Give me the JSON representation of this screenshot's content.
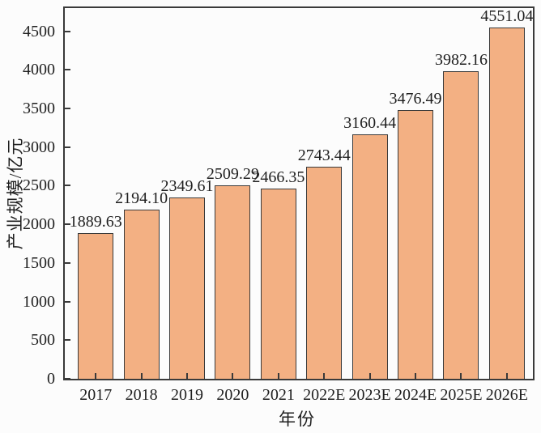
{
  "figure": {
    "background": "#fcfcfc"
  },
  "chart_data": {
    "type": "bar",
    "title": "",
    "xlabel": "年份",
    "ylabel": "产业规模/亿元",
    "categories": [
      "2017",
      "2018",
      "2019",
      "2020",
      "2021",
      "2022E",
      "2023E",
      "2024E",
      "2025E",
      "2026E"
    ],
    "values": [
      1889.63,
      2194.1,
      2349.61,
      2509.29,
      2466.35,
      2743.44,
      3160.44,
      3476.49,
      3982.16,
      4551.04
    ],
    "value_labels": [
      "1889.63",
      "2194.10",
      "2349.61",
      "2509.29",
      "2466.35",
      "2743.44",
      "3160.44",
      "3476.49",
      "3982.16",
      "4551.04"
    ],
    "yticks": [
      0,
      500,
      1000,
      1500,
      2000,
      2500,
      3000,
      3500,
      4000,
      4500
    ],
    "ylim": [
      0,
      4800
    ],
    "grid": false,
    "legend_position": "none",
    "bar_color": "#f3b083",
    "bar_edge_color": "#3a3a3a",
    "axis_color": "#3a3a3a",
    "text_color": "#1f1f1f"
  }
}
